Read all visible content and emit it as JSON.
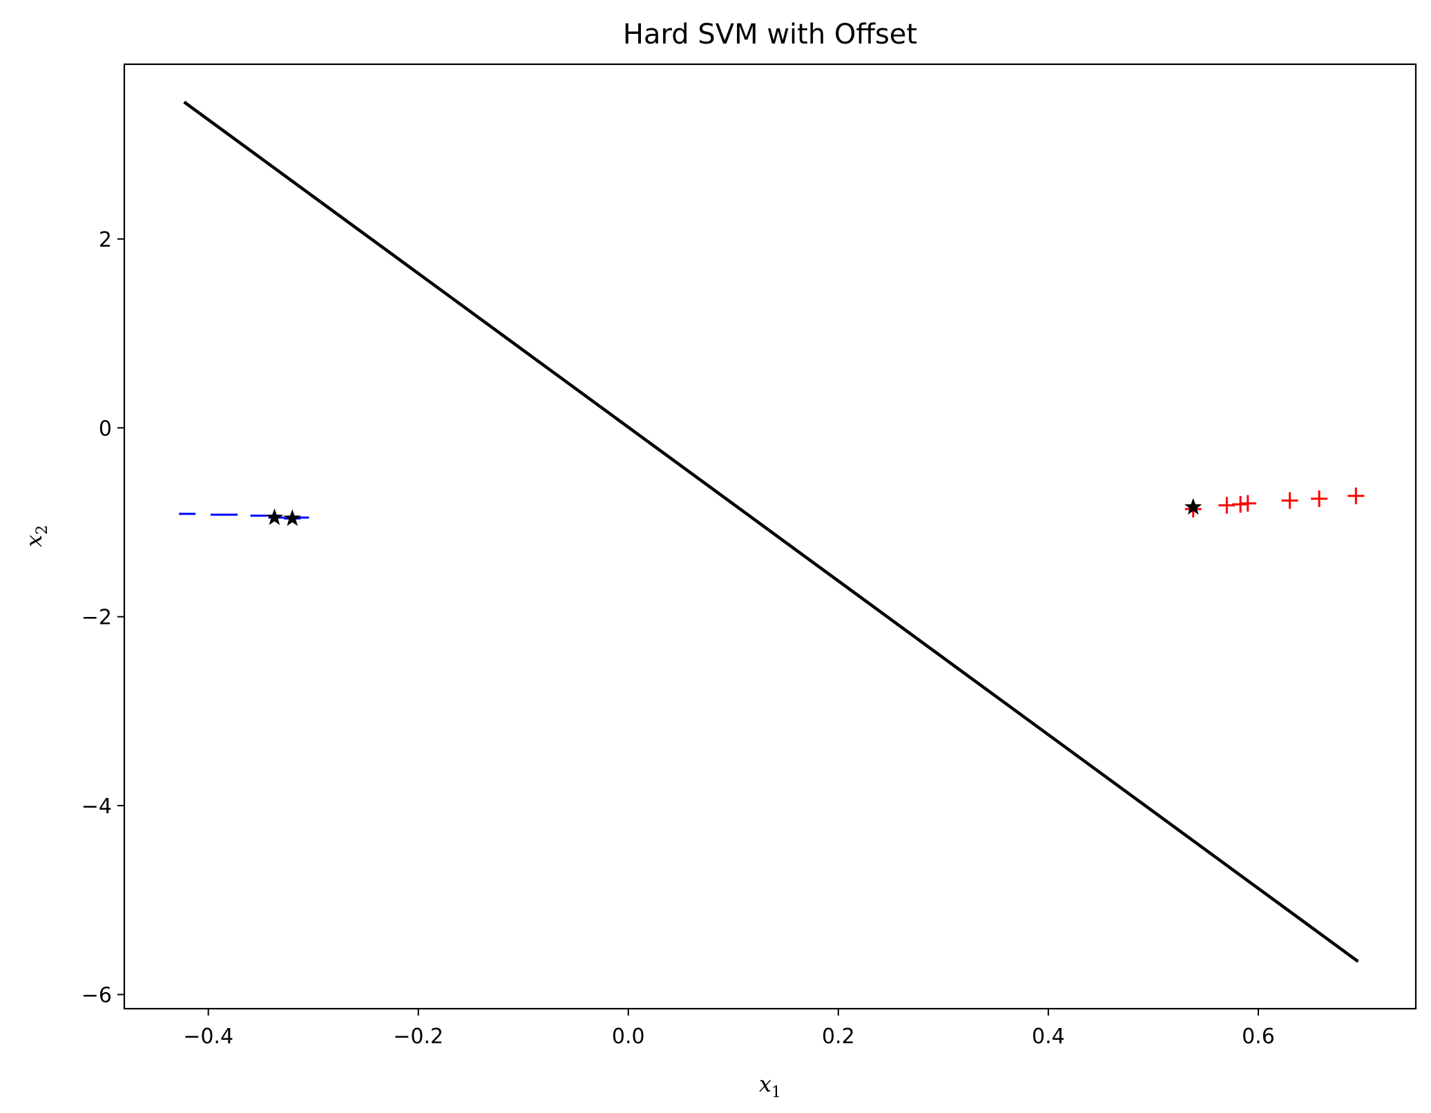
{
  "chart_data": {
    "type": "scatter",
    "title": "Hard SVM with Offset",
    "xlabel": {
      "base": "x",
      "sub": "1"
    },
    "ylabel": {
      "base": "x",
      "sub": "2"
    },
    "xlim": [
      -0.48,
      0.75
    ],
    "ylim": [
      -6.15,
      3.85
    ],
    "xticks": [
      -0.4,
      -0.2,
      0.0,
      0.2,
      0.4,
      0.6
    ],
    "xtick_labels": [
      "−0.4",
      "−0.2",
      "0.0",
      "0.2",
      "0.4",
      "0.6"
    ],
    "yticks": [
      2,
      0,
      -2,
      -4,
      -6
    ],
    "ytick_labels": [
      "2",
      "0",
      "−2",
      "−4",
      "−6"
    ],
    "grid": false,
    "decision_boundary": {
      "color": "#000000",
      "points": [
        [
          -0.423,
          3.45
        ],
        [
          0.695,
          -5.65
        ]
      ]
    },
    "series": [
      {
        "marker": "minus",
        "color": "#0000ff",
        "points": [
          [
            -0.42,
            -0.91
          ],
          [
            -0.39,
            -0.92
          ],
          [
            -0.38,
            -0.92
          ],
          [
            -0.352,
            -0.93
          ],
          [
            -0.335,
            -0.95
          ],
          [
            -0.32,
            -0.96
          ],
          [
            -0.312,
            -0.95
          ]
        ]
      },
      {
        "marker": "plus",
        "color": "#ff0000",
        "points": [
          [
            0.538,
            -0.86
          ],
          [
            0.57,
            -0.82
          ],
          [
            0.583,
            -0.81
          ],
          [
            0.59,
            -0.8
          ],
          [
            0.63,
            -0.77
          ],
          [
            0.658,
            -0.75
          ],
          [
            0.693,
            -0.72
          ]
        ]
      },
      {
        "marker": "star",
        "color": "#000000",
        "points": [
          [
            -0.337,
            -0.95
          ],
          [
            -0.32,
            -0.96
          ],
          [
            0.538,
            -0.84
          ]
        ]
      }
    ]
  }
}
